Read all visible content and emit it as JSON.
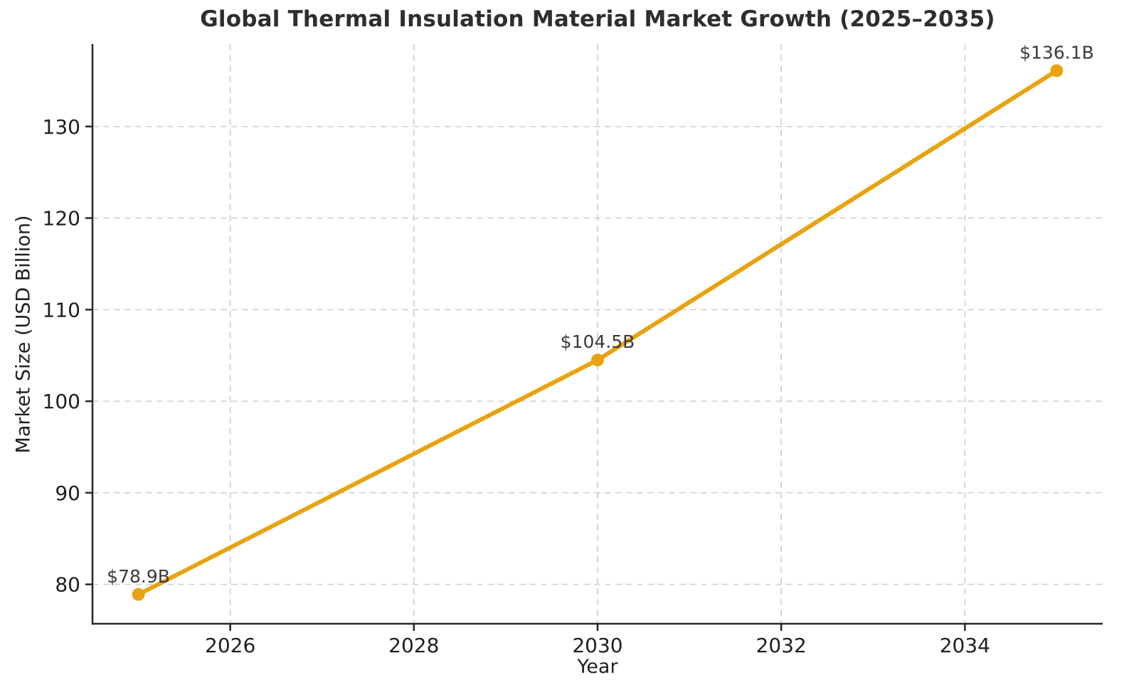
{
  "chart_data": {
    "type": "line",
    "title": "Global Thermal Insulation Material Market Growth (2025–2035)",
    "xlabel": "Year",
    "ylabel": "Market Size (USD Billion)",
    "x": [
      2025,
      2030,
      2035
    ],
    "y": [
      78.9,
      104.5,
      136.1
    ],
    "point_labels": [
      "$78.9B",
      "$104.5B",
      "$136.1B"
    ],
    "x_ticks": [
      2026,
      2028,
      2030,
      2032,
      2034
    ],
    "y_ticks": [
      80,
      90,
      100,
      110,
      120,
      130
    ],
    "xlim": [
      2024.5,
      2035.5
    ],
    "ylim": [
      75.7,
      139.0
    ],
    "grid": true,
    "legend": "none",
    "line_color": "#E8A410",
    "marker_color": "#E8A410",
    "grid_color": "#CFCFCF",
    "spine_color": "#262626",
    "tick_text_color": "#1F1F1F",
    "point_label_color": "#3A3A3A",
    "background": "#FFFFFF"
  }
}
